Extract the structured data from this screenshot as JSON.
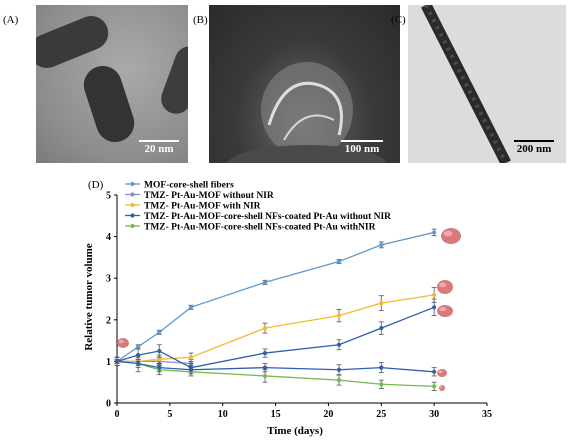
{
  "panels": {
    "a": {
      "label": "(A)",
      "scale": "20 nm"
    },
    "b": {
      "label": "(B)",
      "scale": "100 nm"
    },
    "c": {
      "label": "(C)",
      "scale": "200 nm"
    },
    "d": {
      "label": "(D)"
    }
  },
  "chart_data": {
    "type": "line",
    "xlabel": "Time (days)",
    "ylabel": "Relative tumor volume",
    "xlim": [
      0,
      35
    ],
    "ylim": [
      0,
      5
    ],
    "xticks": [
      "0",
      "5",
      "10",
      "15",
      "20",
      "25",
      "30",
      "35"
    ],
    "yticks": [
      "0",
      "1",
      "2",
      "3",
      "4",
      "5"
    ],
    "legend_position": "top-left",
    "grid": false,
    "series": [
      {
        "name": "MOF-core-shell fibers",
        "color": "#5b9bd5",
        "x": [
          0,
          2,
          4,
          7,
          14,
          21,
          25,
          30
        ],
        "y": [
          1.0,
          1.35,
          1.7,
          2.3,
          2.9,
          3.4,
          3.8,
          4.1
        ],
        "err": [
          0.05,
          0.05,
          0.05,
          0.05,
          0.05,
          0.05,
          0.07,
          0.08
        ]
      },
      {
        "name": "TMZ- Pt-Au-MOF without NIR",
        "color": "#8a8fbf",
        "x": [
          0,
          2,
          4,
          7
        ],
        "y": [
          1.0,
          1.0,
          1.0,
          0.95
        ],
        "err": [
          0.1,
          0.1,
          0.1,
          0.1
        ]
      },
      {
        "name": "TMZ- Pt-Au-MOF with NIR",
        "color": "#f5b82e",
        "x": [
          0,
          2,
          4,
          7,
          14,
          21,
          25,
          30
        ],
        "y": [
          1.0,
          1.0,
          1.05,
          1.1,
          1.8,
          2.1,
          2.4,
          2.6
        ],
        "err": [
          0.05,
          0.05,
          0.1,
          0.1,
          0.12,
          0.15,
          0.18,
          0.18
        ]
      },
      {
        "name": "TMZ- Pt-Au-MOF-core-shell NFs-coated Pt-Au  without NIR",
        "color": "#2f5fad",
        "x": [
          0,
          2,
          4,
          7,
          14,
          21,
          25,
          30
        ],
        "y": [
          1.0,
          1.15,
          1.25,
          0.85,
          1.2,
          1.4,
          1.8,
          2.3
        ],
        "err": [
          0.1,
          0.15,
          0.15,
          0.1,
          0.1,
          0.12,
          0.15,
          0.2
        ]
      },
      {
        "name": "TMZ- Pt-Au-MOF-core-shell NFs-coated Pt-Au  withNIR",
        "color": "#76b852",
        "x": [
          0,
          2,
          4,
          7,
          14,
          21,
          25,
          30
        ],
        "y": [
          1.0,
          0.95,
          0.8,
          0.75,
          0.65,
          0.55,
          0.45,
          0.4
        ],
        "err": [
          0.1,
          0.2,
          0.12,
          0.1,
          0.15,
          0.12,
          0.1,
          0.1
        ]
      },
      {
        "name": "",
        "color": "#2f5fad",
        "x": [
          0,
          2,
          4,
          7,
          14,
          21,
          25,
          30
        ],
        "y": [
          1.0,
          0.95,
          0.85,
          0.8,
          0.85,
          0.8,
          0.85,
          0.75
        ],
        "err": [
          0.1,
          0.1,
          0.1,
          0.1,
          0.1,
          0.12,
          0.12,
          0.1
        ]
      }
    ]
  }
}
